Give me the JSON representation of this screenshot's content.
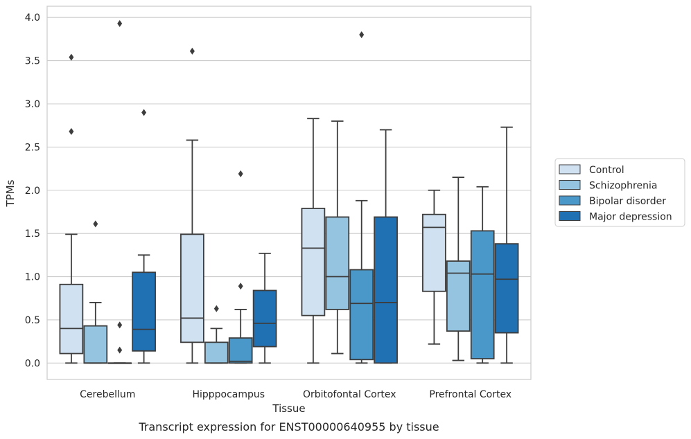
{
  "caption": "Transcript expression for ENST00000640955 by tissue",
  "chart_data": {
    "type": "box",
    "title": "",
    "xlabel": "Tissue",
    "ylabel": "TPMs",
    "ylim": [
      -0.19,
      4.13
    ],
    "yticks": [
      0.0,
      0.5,
      1.0,
      1.5,
      2.0,
      2.5,
      3.0,
      3.5,
      4.0
    ],
    "ytick_labels": [
      "0.0",
      "0.5",
      "1.0",
      "1.5",
      "2.0",
      "2.5",
      "3.0",
      "3.5",
      "4.0"
    ],
    "grid": true,
    "legend_position": "right",
    "categories": [
      "Cerebellum",
      "Hipppocampus",
      "Orbitofontal Cortex",
      "Prefrontal Cortex"
    ],
    "series": [
      {
        "name": "Control",
        "color": "#d0e1f2",
        "boxes": [
          {
            "whislo": 0.0,
            "q1": 0.11,
            "med": 0.4,
            "q3": 0.91,
            "whishi": 1.49,
            "fliers": [
              2.68,
              3.54
            ]
          },
          {
            "whislo": 0.0,
            "q1": 0.24,
            "med": 0.52,
            "q3": 1.49,
            "whishi": 2.58,
            "fliers": [
              3.61
            ]
          },
          {
            "whislo": 0.0,
            "q1": 0.55,
            "med": 1.33,
            "q3": 1.79,
            "whishi": 2.83,
            "fliers": []
          },
          {
            "whislo": 0.22,
            "q1": 0.83,
            "med": 1.57,
            "q3": 1.72,
            "whishi": 2.0,
            "fliers": []
          }
        ]
      },
      {
        "name": "Schizophrenia",
        "color": "#94c4df",
        "boxes": [
          {
            "whislo": 0.0,
            "q1": 0.0,
            "med": 0.0,
            "q3": 0.43,
            "whishi": 0.7,
            "fliers": [
              1.61
            ]
          },
          {
            "whislo": 0.0,
            "q1": 0.0,
            "med": 0.0,
            "q3": 0.24,
            "whishi": 0.4,
            "fliers": [
              0.63
            ]
          },
          {
            "whislo": 0.11,
            "q1": 0.62,
            "med": 1.0,
            "q3": 1.69,
            "whishi": 2.8,
            "fliers": []
          },
          {
            "whislo": 0.03,
            "q1": 0.37,
            "med": 1.04,
            "q3": 1.18,
            "whishi": 2.15,
            "fliers": []
          }
        ]
      },
      {
        "name": "Bipolar disorder",
        "color": "#4a98c9",
        "boxes": [
          {
            "whislo": 0.0,
            "q1": 0.0,
            "med": 0.0,
            "q3": 0.0,
            "whishi": 0.0,
            "fliers": [
              0.15,
              0.44,
              3.93
            ]
          },
          {
            "whislo": 0.0,
            "q1": 0.0,
            "med": 0.02,
            "q3": 0.29,
            "whishi": 0.62,
            "fliers": [
              0.89,
              2.19
            ]
          },
          {
            "whislo": 0.0,
            "q1": 0.04,
            "med": 0.69,
            "q3": 1.08,
            "whishi": 1.88,
            "fliers": [
              3.8
            ]
          },
          {
            "whislo": 0.0,
            "q1": 0.05,
            "med": 1.03,
            "q3": 1.53,
            "whishi": 2.04,
            "fliers": []
          }
        ]
      },
      {
        "name": "Major depression",
        "color": "#2070b4",
        "boxes": [
          {
            "whislo": 0.0,
            "q1": 0.14,
            "med": 0.39,
            "q3": 1.05,
            "whishi": 1.25,
            "fliers": [
              2.9
            ]
          },
          {
            "whislo": 0.0,
            "q1": 0.19,
            "med": 0.46,
            "q3": 0.84,
            "whishi": 1.27,
            "fliers": []
          },
          {
            "whislo": 0.0,
            "q1": 0.0,
            "med": 0.7,
            "q3": 1.69,
            "whishi": 2.7,
            "fliers": []
          },
          {
            "whislo": 0.0,
            "q1": 0.35,
            "med": 0.97,
            "q3": 1.38,
            "whishi": 2.73,
            "fliers": []
          }
        ]
      }
    ]
  }
}
